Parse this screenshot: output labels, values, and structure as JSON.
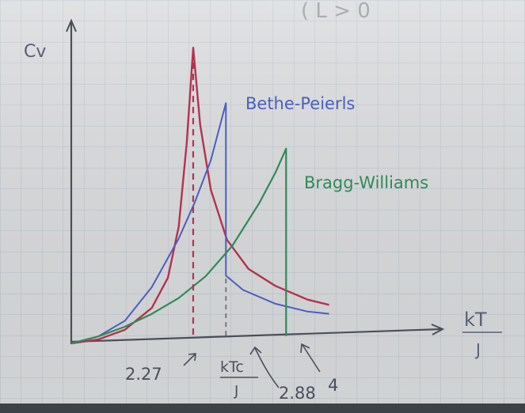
{
  "chart_data": {
    "type": "line",
    "ylabel": "Cv",
    "xlabel_num": "kT",
    "xlabel_den": "J",
    "corner_text": "( L > 0",
    "x_range": [
      0,
      6.9
    ],
    "y_range": [
      0,
      1.0
    ],
    "series": [
      {
        "name": "",
        "color": "#b5324f",
        "x": [
          0.0,
          0.5,
          1.0,
          1.5,
          1.8,
          2.0,
          2.15,
          2.27,
          2.4,
          2.6,
          2.9,
          3.3,
          3.8,
          4.4,
          4.8
        ],
        "y": [
          0.0,
          0.01,
          0.04,
          0.11,
          0.21,
          0.38,
          0.66,
          0.98,
          0.72,
          0.5,
          0.33,
          0.23,
          0.17,
          0.12,
          0.1
        ]
      },
      {
        "name": "Bethe-Peierls",
        "color": "#4a5fc0",
        "x": [
          0.0,
          0.5,
          1.0,
          1.5,
          2.0,
          2.3,
          2.6,
          2.88,
          2.88,
          3.2,
          3.8,
          4.4,
          4.8
        ],
        "y": [
          0.0,
          0.02,
          0.07,
          0.18,
          0.34,
          0.46,
          0.6,
          0.79,
          0.21,
          0.16,
          0.11,
          0.08,
          0.07
        ]
      },
      {
        "name": "Bragg-Williams",
        "color": "#2f8a5a",
        "x": [
          0.0,
          0.5,
          1.0,
          1.5,
          2.0,
          2.5,
          3.0,
          3.5,
          3.8,
          4.0,
          4.0
        ],
        "y": [
          0.0,
          0.02,
          0.05,
          0.09,
          0.14,
          0.21,
          0.31,
          0.45,
          0.55,
          0.63,
          0.0
        ]
      }
    ],
    "annotations": [
      {
        "text": "2.27",
        "x": 2.27
      },
      {
        "text_num": "kTc",
        "text_den": "J",
        "x": 2.88
      },
      {
        "text": "2.88",
        "x": 2.88
      },
      {
        "text": "4",
        "x": 4.0
      }
    ]
  }
}
